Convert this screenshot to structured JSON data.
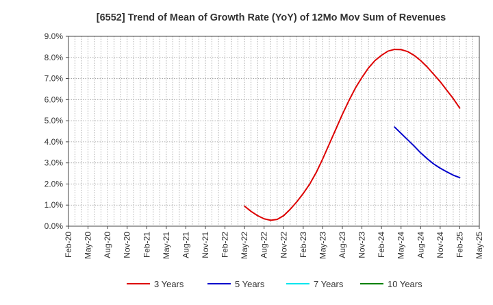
{
  "chart_data": {
    "type": "line",
    "title": "[6552]  Trend of Mean of Growth Rate (YoY) of 12Mo Mov Sum of Revenues",
    "xlabel": "",
    "ylabel": "",
    "x_ticks": [
      "Feb-20",
      "May-20",
      "Aug-20",
      "Nov-20",
      "Feb-21",
      "May-21",
      "Aug-21",
      "Nov-21",
      "Feb-22",
      "May-22",
      "Aug-22",
      "Nov-22",
      "Feb-23",
      "May-23",
      "Aug-23",
      "Nov-23",
      "Feb-24",
      "May-24",
      "Aug-24",
      "Nov-24",
      "Feb-25",
      "May-25"
    ],
    "y_ticks": [
      "0.0%",
      "1.0%",
      "2.0%",
      "3.0%",
      "4.0%",
      "5.0%",
      "6.0%",
      "7.0%",
      "8.0%",
      "9.0%"
    ],
    "ylim": [
      0,
      9
    ],
    "grid": true,
    "legend_position": "bottom",
    "series": [
      {
        "name": "3 Years",
        "color": "#dd0000",
        "points": [
          [
            "May-22",
            0.95
          ],
          [
            "Jun-22",
            0.7
          ],
          [
            "Jul-22",
            0.5
          ],
          [
            "Aug-22",
            0.35
          ],
          [
            "Sep-22",
            0.28
          ],
          [
            "Oct-22",
            0.32
          ],
          [
            "Nov-22",
            0.5
          ],
          [
            "Dec-22",
            0.8
          ],
          [
            "Jan-23",
            1.15
          ],
          [
            "Feb-23",
            1.55
          ],
          [
            "Mar-23",
            2.0
          ],
          [
            "Apr-23",
            2.55
          ],
          [
            "May-23",
            3.2
          ],
          [
            "Jun-23",
            3.9
          ],
          [
            "Jul-23",
            4.6
          ],
          [
            "Aug-23",
            5.3
          ],
          [
            "Sep-23",
            5.95
          ],
          [
            "Oct-23",
            6.55
          ],
          [
            "Nov-23",
            7.05
          ],
          [
            "Dec-23",
            7.5
          ],
          [
            "Jan-24",
            7.85
          ],
          [
            "Feb-24",
            8.1
          ],
          [
            "Mar-24",
            8.3
          ],
          [
            "Apr-24",
            8.38
          ],
          [
            "May-24",
            8.37
          ],
          [
            "Jun-24",
            8.28
          ],
          [
            "Jul-24",
            8.1
          ],
          [
            "Aug-24",
            7.85
          ],
          [
            "Sep-24",
            7.55
          ],
          [
            "Oct-24",
            7.2
          ],
          [
            "Nov-24",
            6.85
          ],
          [
            "Dec-24",
            6.45
          ],
          [
            "Jan-25",
            6.05
          ],
          [
            "Feb-25",
            5.6
          ]
        ]
      },
      {
        "name": "5 Years",
        "color": "#0000cc",
        "points": [
          [
            "Apr-24",
            4.7
          ],
          [
            "May-24",
            4.4
          ],
          [
            "Jun-24",
            4.1
          ],
          [
            "Jul-24",
            3.8
          ],
          [
            "Aug-24",
            3.48
          ],
          [
            "Sep-24",
            3.2
          ],
          [
            "Oct-24",
            2.95
          ],
          [
            "Nov-24",
            2.75
          ],
          [
            "Dec-24",
            2.58
          ],
          [
            "Jan-25",
            2.42
          ],
          [
            "Feb-25",
            2.3
          ]
        ]
      },
      {
        "name": "7 Years",
        "color": "#00e5ee",
        "points": []
      },
      {
        "name": "10 Years",
        "color": "#008000",
        "points": []
      }
    ]
  }
}
